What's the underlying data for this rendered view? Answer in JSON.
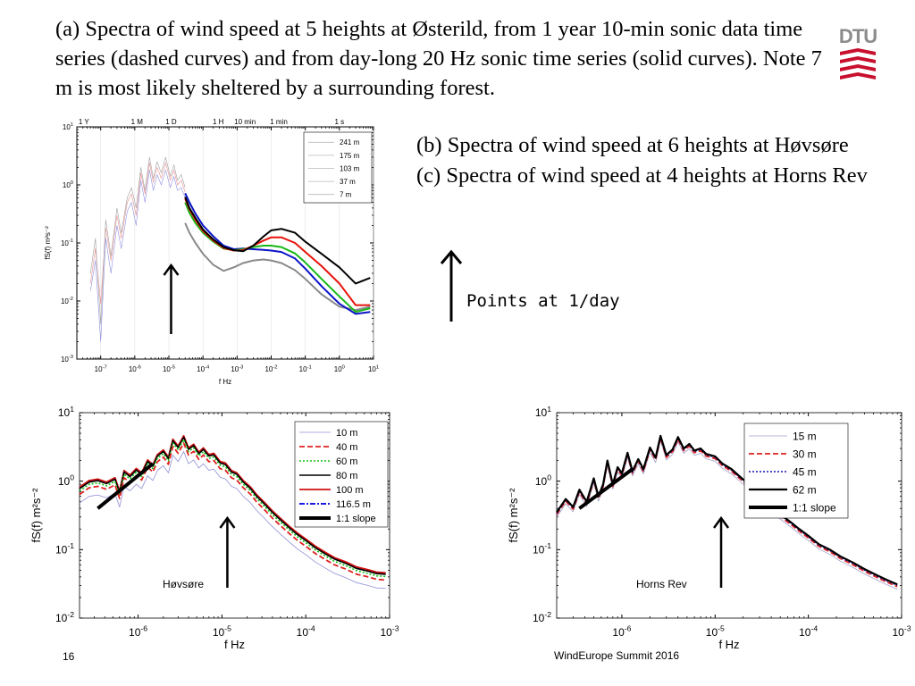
{
  "slide": {
    "heading_a": "(a) Spectra of wind speed at 5 heights at Østerild, from 1 year 10-min sonic data time series (dashed curves) and from day-long 20 Hz sonic time series (solid curves). Note 7 m is most likely sheltered by a surrounding forest.",
    "heading_b": "(b) Spectra of wind speed at 6 heights at Høvsøre",
    "heading_c": "(c) Spectra of wind speed at 4 heights at Horns Rev",
    "callout": "Points at 1/day",
    "page_number": "16",
    "event": "WindEurope Summit 2016",
    "logo_text": "DTU",
    "colors": {
      "dtu_red": "#c8102e",
      "dtu_grey": "#8c8c8c"
    }
  },
  "chart_data": [
    {
      "id": "osterild",
      "type": "line",
      "x_scale": "log",
      "y_scale": "log",
      "xlim": [
        2e-08,
        10.0
      ],
      "ylim": [
        0.001,
        10.0
      ],
      "xlabel": "f Hz",
      "ylabel": "fS(f) m²s⁻²",
      "x_ticks": [
        {
          "v": 1e-07,
          "base": "10",
          "exp": "-7"
        },
        {
          "v": 1e-06,
          "base": "10",
          "exp": "-6"
        },
        {
          "v": 1e-05,
          "base": "10",
          "exp": "-5"
        },
        {
          "v": 0.0001,
          "base": "10",
          "exp": "-4"
        },
        {
          "v": 0.001,
          "base": "10",
          "exp": "-3"
        },
        {
          "v": 0.01,
          "base": "10",
          "exp": "-2"
        },
        {
          "v": 0.1,
          "base": "10",
          "exp": "-1"
        },
        {
          "v": 1,
          "base": "10",
          "exp": "0"
        },
        {
          "v": 10,
          "base": "10",
          "exp": "1"
        }
      ],
      "y_ticks": [
        {
          "v": 0.001,
          "base": "10",
          "exp": "-3"
        },
        {
          "v": 0.01,
          "base": "10",
          "exp": "-2"
        },
        {
          "v": 0.1,
          "base": "10",
          "exp": "-1"
        },
        {
          "v": 1,
          "base": "10",
          "exp": "0"
        },
        {
          "v": 10,
          "base": "10",
          "exp": "1"
        }
      ],
      "top_labels": [
        {
          "v": 3.2e-08,
          "text": "1 Y"
        },
        {
          "v": 1.16e-06,
          "text": "1 M"
        },
        {
          "v": 1.16e-05,
          "text": "1 D"
        },
        {
          "v": 0.00028,
          "text": "1 H"
        },
        {
          "v": 0.0017,
          "text": "10 min"
        },
        {
          "v": 0.0167,
          "text": "1 min"
        },
        {
          "v": 1,
          "text": "1 s"
        }
      ],
      "legend": {
        "position": "top-right",
        "entries": [
          "241 m",
          "175 m",
          "103 m",
          "37 m",
          "7 m"
        ]
      },
      "arrow_at_x": 1.16e-05,
      "series": [
        {
          "name": "241 m",
          "color": "#000000",
          "width": 2,
          "x": [
            3e-05,
            4e-05,
            6e-05,
            0.0001,
            0.0002,
            0.0004,
            0.0008,
            0.0015,
            0.003,
            0.006,
            0.01,
            0.02,
            0.05,
            0.1,
            0.3,
            1,
            3,
            8
          ],
          "y": [
            0.62,
            0.4,
            0.27,
            0.17,
            0.115,
            0.085,
            0.075,
            0.072,
            0.09,
            0.13,
            0.165,
            0.175,
            0.15,
            0.105,
            0.065,
            0.038,
            0.02,
            0.025
          ]
        },
        {
          "name": "175 m",
          "color": "#e8130c",
          "width": 2,
          "x": [
            3e-05,
            4e-05,
            6e-05,
            0.0001,
            0.0002,
            0.0004,
            0.0008,
            0.0015,
            0.003,
            0.006,
            0.01,
            0.02,
            0.05,
            0.1,
            0.3,
            1,
            3,
            8
          ],
          "y": [
            0.58,
            0.38,
            0.25,
            0.16,
            0.11,
            0.082,
            0.074,
            0.075,
            0.09,
            0.11,
            0.125,
            0.125,
            0.1,
            0.07,
            0.04,
            0.02,
            0.0085,
            0.0085
          ]
        },
        {
          "name": "103 m",
          "color": "#18b818",
          "width": 2,
          "x": [
            3e-05,
            4e-05,
            6e-05,
            0.0001,
            0.0002,
            0.0004,
            0.0008,
            0.0015,
            0.003,
            0.006,
            0.01,
            0.02,
            0.05,
            0.1,
            0.3,
            1,
            3,
            8
          ],
          "y": [
            0.5,
            0.33,
            0.22,
            0.15,
            0.105,
            0.08,
            0.075,
            0.078,
            0.085,
            0.09,
            0.09,
            0.085,
            0.066,
            0.046,
            0.024,
            0.012,
            0.0065,
            0.0075
          ]
        },
        {
          "name": "37 m",
          "color": "#0b14c8",
          "width": 2,
          "x": [
            3e-05,
            4e-05,
            6e-05,
            0.0001,
            0.0002,
            0.0004,
            0.0008,
            0.0015,
            0.003,
            0.006,
            0.01,
            0.02,
            0.05,
            0.1,
            0.3,
            1,
            3,
            8
          ],
          "y": [
            0.72,
            0.5,
            0.32,
            0.2,
            0.13,
            0.09,
            0.078,
            0.08,
            0.078,
            0.076,
            0.074,
            0.07,
            0.054,
            0.036,
            0.018,
            0.009,
            0.006,
            0.0065
          ]
        },
        {
          "name": "7 m",
          "color": "#8a8a8a",
          "width": 2,
          "x": [
            3e-05,
            4e-05,
            6e-05,
            0.0001,
            0.0002,
            0.0004,
            0.0008,
            0.0015,
            0.003,
            0.006,
            0.01,
            0.02,
            0.05,
            0.1,
            0.3,
            1,
            3,
            8
          ],
          "y": [
            0.22,
            0.15,
            0.1,
            0.065,
            0.042,
            0.033,
            0.038,
            0.045,
            0.05,
            0.052,
            0.05,
            0.045,
            0.034,
            0.024,
            0.013,
            0.008,
            0.007,
            0.008
          ]
        },
        {
          "name": "241 m (10-min)",
          "color": "#a0a0a0",
          "width": 0.6,
          "x": [
            5e-08,
            7e-08,
            1e-07,
            1.4e-07,
            2e-07,
            3e-07,
            4e-07,
            6e-07,
            8e-07,
            1.1e-06,
            1.5e-06,
            2e-06,
            2.7e-06,
            3.5e-06,
            4.5e-06,
            6e-06,
            8e-06,
            1.1e-05,
            1.4e-05,
            1.8e-05,
            2.3e-05,
            3e-05
          ],
          "y": [
            0.03,
            0.12,
            0.004,
            0.25,
            0.06,
            0.4,
            0.15,
            0.6,
            0.9,
            0.4,
            2,
            0.8,
            3,
            1.3,
            2.5,
            1.6,
            3,
            1.4,
            2.2,
            1.2,
            1.5,
            0.9
          ]
        },
        {
          "name": "103 m (10-min)",
          "color": "#e89090",
          "width": 0.6,
          "x": [
            5e-08,
            7e-08,
            1e-07,
            1.4e-07,
            2e-07,
            3e-07,
            4e-07,
            6e-07,
            8e-07,
            1.1e-06,
            1.5e-06,
            2e-06,
            2.7e-06,
            3.5e-06,
            4.5e-06,
            6e-06,
            8e-06,
            1.1e-05,
            1.4e-05,
            1.8e-05,
            2.3e-05,
            3e-05
          ],
          "y": [
            0.02,
            0.08,
            0.009,
            0.18,
            0.05,
            0.3,
            0.12,
            0.5,
            0.7,
            0.3,
            1.6,
            0.7,
            2.4,
            1.1,
            2,
            1.3,
            2.4,
            1.2,
            1.8,
            1,
            1.2,
            0.75
          ]
        },
        {
          "name": "37 m (10-min)",
          "color": "#9090e0",
          "width": 0.6,
          "x": [
            5e-08,
            7e-08,
            1e-07,
            1.4e-07,
            2e-07,
            3e-07,
            4e-07,
            6e-07,
            8e-07,
            1.1e-06,
            1.5e-06,
            2e-06,
            2.7e-06,
            3.5e-06,
            4.5e-06,
            6e-06,
            8e-06,
            1.1e-05,
            1.4e-05,
            1.8e-05,
            2.3e-05,
            3e-05
          ],
          "y": [
            0.015,
            0.05,
            0.002,
            0.12,
            0.03,
            0.2,
            0.08,
            0.35,
            0.5,
            0.2,
            1.2,
            0.5,
            1.8,
            0.8,
            1.5,
            1,
            1.8,
            0.9,
            1.4,
            0.8,
            0.9,
            0.6
          ]
        }
      ]
    },
    {
      "id": "hovsore",
      "type": "line",
      "x_scale": "log",
      "y_scale": "log",
      "xlim": [
        2e-07,
        0.001
      ],
      "ylim": [
        0.01,
        10.0
      ],
      "xlabel": "f Hz",
      "ylabel": "fS(f) m²s⁻²",
      "x_ticks": [
        {
          "v": 1e-06,
          "base": "10",
          "exp": "-6"
        },
        {
          "v": 1e-05,
          "base": "10",
          "exp": "-5"
        },
        {
          "v": 0.0001,
          "base": "10",
          "exp": "-4"
        },
        {
          "v": 0.001,
          "base": "10",
          "exp": "-3"
        }
      ],
      "y_ticks": [
        {
          "v": 0.01,
          "base": "10",
          "exp": "-2"
        },
        {
          "v": 0.1,
          "base": "10",
          "exp": "-1"
        },
        {
          "v": 1,
          "base": "10",
          "exp": "0"
        },
        {
          "v": 10,
          "base": "10",
          "exp": "1"
        }
      ],
      "site_label": "Høvsøre",
      "arrow_at_x": 1.16e-05,
      "legend": {
        "position": "top-right",
        "entries": [
          "10 m",
          "40 m",
          "60 m",
          "80 m",
          "100 m",
          "116.5 m",
          "1:1 slope"
        ]
      },
      "slope_line": {
        "x": [
          3.3e-07,
          1.5e-06
        ],
        "y": [
          0.4,
          1.8
        ]
      },
      "series": [
        {
          "name": "116.5 m",
          "color": "#1a1ae0",
          "dash": "6,2,2,2",
          "width": 2,
          "scale": 1.0
        },
        {
          "name": "100 m",
          "color": "#d01010",
          "dash": "",
          "width": 1.8,
          "scale": 1.02
        },
        {
          "name": "80 m",
          "color": "#000000",
          "dash": "",
          "width": 1.6,
          "scale": 0.97
        },
        {
          "name": "60 m",
          "color": "#10c010",
          "dash": "2,2",
          "width": 1.6,
          "scale": 0.9
        },
        {
          "name": "40 m",
          "color": "#e02020",
          "dash": "6,3",
          "width": 1.8,
          "scale": 0.8
        },
        {
          "name": "10 m",
          "color": "#9090d8",
          "dash": "",
          "width": 0.8,
          "scale": 0.6
        }
      ],
      "base_curve": {
        "x": [
          2e-07,
          2.6e-07,
          3.3e-07,
          4.2e-07,
          5.3e-07,
          6e-07,
          6.8e-07,
          8e-07,
          9.5e-07,
          1.1e-06,
          1.3e-06,
          1.5e-06,
          1.7e-06,
          2e-06,
          2.3e-06,
          2.6e-06,
          3e-06,
          3.5e-06,
          4e-06,
          4.6e-06,
          5.3e-06,
          6e-06,
          7e-06,
          8e-06,
          9.5e-06,
          1.1e-05,
          1.3e-05,
          1.5e-05,
          1.8e-05,
          2.2e-05,
          2.6e-05,
          3.2e-05,
          4e-05,
          5e-05,
          6.5e-05,
          8e-05,
          0.0001,
          0.00013,
          0.00017,
          0.00022,
          0.0003,
          0.0004,
          0.00055,
          0.0007,
          0.0009
        ],
        "y": [
          0.8,
          1.0,
          1.05,
          0.95,
          1.1,
          0.7,
          1.4,
          1.2,
          1.5,
          1.3,
          2.0,
          1.7,
          2.4,
          2.8,
          2.2,
          4.0,
          3.2,
          4.5,
          3.0,
          3.4,
          2.6,
          3.0,
          2.4,
          2.5,
          1.9,
          1.8,
          1.4,
          1.3,
          1.0,
          0.8,
          0.62,
          0.48,
          0.36,
          0.28,
          0.21,
          0.17,
          0.14,
          0.11,
          0.09,
          0.075,
          0.065,
          0.055,
          0.05,
          0.046,
          0.045
        ]
      }
    },
    {
      "id": "hornsrev",
      "type": "line",
      "x_scale": "log",
      "y_scale": "log",
      "xlim": [
        2e-07,
        0.001
      ],
      "ylim": [
        0.01,
        10.0
      ],
      "xlabel": "f Hz",
      "ylabel": "fS(f) m²s⁻²",
      "x_ticks": [
        {
          "v": 1e-06,
          "base": "10",
          "exp": "-6"
        },
        {
          "v": 1e-05,
          "base": "10",
          "exp": "-5"
        },
        {
          "v": 0.0001,
          "base": "10",
          "exp": "-4"
        },
        {
          "v": 0.001,
          "base": "10",
          "exp": "-3"
        }
      ],
      "y_ticks": [
        {
          "v": 0.01,
          "base": "10",
          "exp": "-2"
        },
        {
          "v": 0.1,
          "base": "10",
          "exp": "-1"
        },
        {
          "v": 1,
          "base": "10",
          "exp": "0"
        },
        {
          "v": 10,
          "base": "10",
          "exp": "1"
        }
      ],
      "site_label": "Horns Rev",
      "arrow_at_x": 1.16e-05,
      "legend": {
        "position": "top-right",
        "entries": [
          "15 m",
          "30 m",
          "45 m",
          "62 m",
          "1:1 slope"
        ]
      },
      "slope_line": {
        "x": [
          3.5e-07,
          1.3e-06
        ],
        "y": [
          0.4,
          1.5
        ]
      },
      "series": [
        {
          "name": "15 m",
          "color": "#a0a0c8",
          "dash": "",
          "width": 0.8,
          "scale": 0.85
        },
        {
          "name": "30 m",
          "color": "#e02020",
          "dash": "6,3",
          "width": 1.8,
          "scale": 0.93
        },
        {
          "name": "45 m",
          "color": "#1010b0",
          "dash": "2,2",
          "width": 1.6,
          "scale": 0.97
        },
        {
          "name": "62 m",
          "color": "#000000",
          "dash": "",
          "width": 2.2,
          "scale": 1.0
        }
      ],
      "base_curve": {
        "x": [
          2e-07,
          2.5e-07,
          3e-07,
          3.5e-07,
          4.2e-07,
          5e-07,
          5.6e-07,
          6.3e-07,
          7e-07,
          8e-07,
          9e-07,
          1e-06,
          1.15e-06,
          1.3e-06,
          1.5e-06,
          1.7e-06,
          2e-06,
          2.3e-06,
          2.6e-06,
          3e-06,
          3.5e-06,
          4e-06,
          4.6e-06,
          5.3e-06,
          6e-06,
          7e-06,
          8e-06,
          1e-05,
          1.2e-05,
          1.5e-05,
          1.8e-05,
          2.2e-05,
          2.7e-05,
          3.3e-05,
          4e-05,
          5e-05,
          6.5e-05,
          8e-05,
          0.0001,
          0.00013,
          0.00017,
          0.00022,
          0.0003,
          0.0004,
          0.00055,
          0.0007,
          0.0009
        ],
        "y": [
          0.35,
          0.55,
          0.42,
          0.75,
          0.5,
          1.1,
          0.6,
          0.9,
          2.0,
          0.9,
          1.6,
          1.3,
          2.6,
          1.4,
          2.1,
          1.5,
          3.1,
          2.2,
          4.6,
          2.4,
          2.9,
          4.4,
          3.0,
          3.5,
          2.8,
          3.0,
          2.5,
          2.3,
          1.8,
          1.5,
          1.2,
          0.95,
          0.75,
          0.55,
          0.42,
          0.33,
          0.25,
          0.2,
          0.16,
          0.12,
          0.1,
          0.08,
          0.065,
          0.052,
          0.042,
          0.036,
          0.031
        ]
      }
    }
  ]
}
